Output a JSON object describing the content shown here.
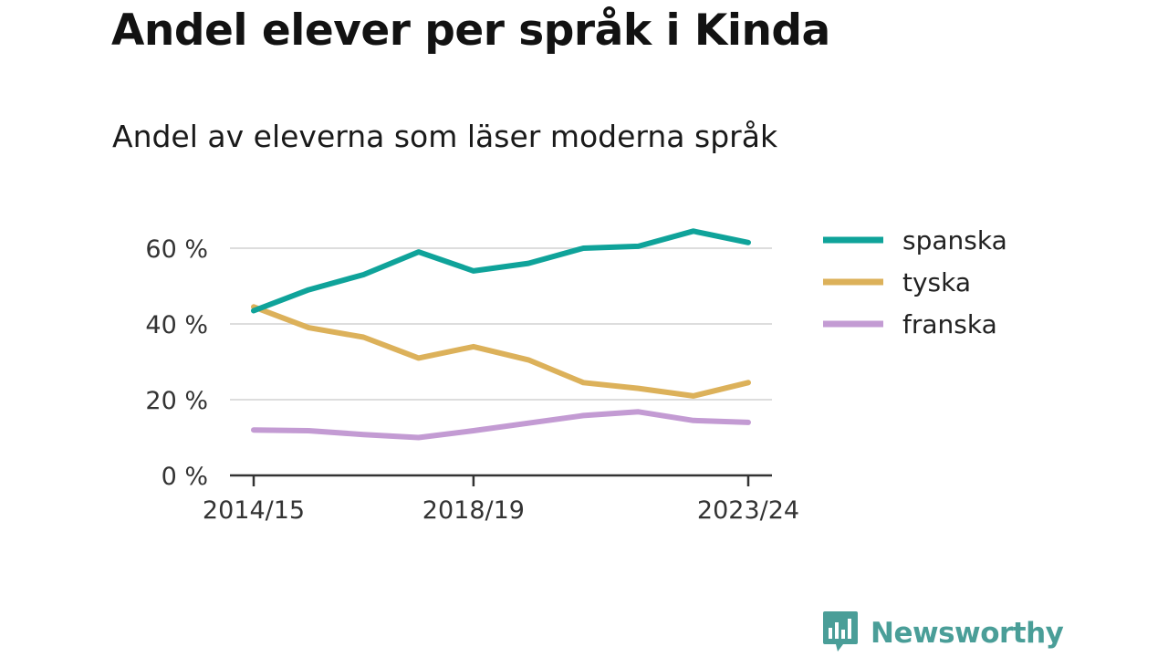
{
  "title": "Andel elever per språk i Kinda",
  "subtitle": "Andel av eleverna som läser moderna språk",
  "brand": "Newsworthy",
  "colors": {
    "brand": "#4a9e98",
    "grid": "#dddddd",
    "axis": "#333333"
  },
  "chart_data": {
    "type": "line",
    "x": [
      "2014/15",
      "2015/16",
      "2016/17",
      "2017/18",
      "2018/19",
      "2019/20",
      "2020/21",
      "2021/22",
      "2022/23",
      "2023/24"
    ],
    "x_tick_labels": [
      "2014/15",
      "2018/19",
      "2023/24"
    ],
    "ylim": [
      0,
      70
    ],
    "y_ticks": [
      0,
      20,
      40,
      60
    ],
    "y_tick_labels": [
      "0 %",
      "20 %",
      "40 %",
      "60 %"
    ],
    "grid": true,
    "legend_position": "right",
    "series": [
      {
        "name": "spanska",
        "color": "#0fa39a",
        "values": [
          43.5,
          49,
          53,
          59,
          54,
          56,
          60,
          60.5,
          64.5,
          61.5
        ]
      },
      {
        "name": "tyska",
        "color": "#dcb15a",
        "values": [
          44.5,
          39,
          36.5,
          31,
          34,
          30.5,
          24.5,
          23,
          21,
          24.5
        ]
      },
      {
        "name": "franska",
        "color": "#c39bd3",
        "values": [
          12,
          11.8,
          10.8,
          10,
          11.8,
          13.8,
          15.8,
          16.8,
          14.5,
          14
        ]
      }
    ]
  }
}
